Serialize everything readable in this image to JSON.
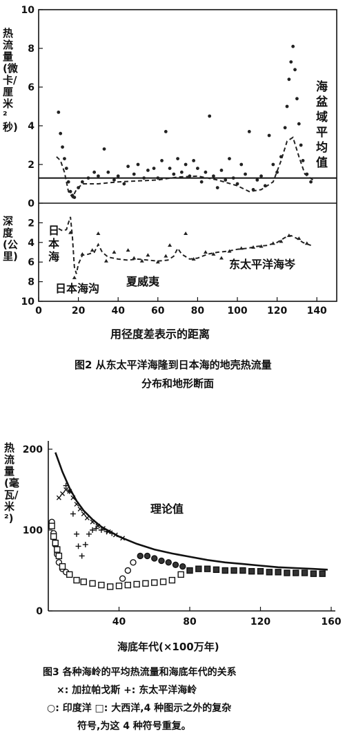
{
  "chart_data": [
    {
      "type": "scatter",
      "figure": "图2",
      "caption_line1": "图2  从东太平洋海隆到日本海的地壳热流量",
      "caption_line2": "分布和地形断面",
      "xlabel": "用径度差表示的距离",
      "x_ticks": [
        "0",
        "20",
        "40",
        "60",
        "80",
        "100",
        "120",
        "140"
      ],
      "xlim": [
        0,
        150
      ],
      "upper_panel": {
        "ylabel": "热流量(微卡/厘米²秒)",
        "ylim": [
          0,
          10
        ],
        "y_ticks": [
          "0",
          "2",
          "4",
          "6",
          "8",
          "10"
        ],
        "average_line": 1.3,
        "average_label": "海盆域平均值",
        "scatter": [
          [
            10,
            4.7
          ],
          [
            11,
            3.6
          ],
          [
            12,
            2.9
          ],
          [
            13,
            2.3
          ],
          [
            14,
            1.8
          ],
          [
            15,
            1.1
          ],
          [
            16,
            0.6
          ],
          [
            17,
            0.4
          ],
          [
            18,
            0.3
          ],
          [
            20,
            0.8
          ],
          [
            22,
            1.1
          ],
          [
            25,
            1.3
          ],
          [
            28,
            1.6
          ],
          [
            30,
            1.4
          ],
          [
            33,
            2.8
          ],
          [
            35,
            1.6
          ],
          [
            38,
            1.2
          ],
          [
            40,
            1.4
          ],
          [
            43,
            1.0
          ],
          [
            45,
            1.9
          ],
          [
            48,
            1.5
          ],
          [
            50,
            2.0
          ],
          [
            53,
            1.3
          ],
          [
            55,
            1.7
          ],
          [
            58,
            1.8
          ],
          [
            60,
            1.3
          ],
          [
            62,
            2.2
          ],
          [
            64,
            3.7
          ],
          [
            66,
            1.8
          ],
          [
            68,
            1.5
          ],
          [
            70,
            2.3
          ],
          [
            72,
            1.6
          ],
          [
            74,
            2.0
          ],
          [
            76,
            1.4
          ],
          [
            78,
            2.2
          ],
          [
            80,
            1.8
          ],
          [
            82,
            1.1
          ],
          [
            84,
            1.6
          ],
          [
            86,
            4.5
          ],
          [
            88,
            1.4
          ],
          [
            90,
            0.8
          ],
          [
            92,
            1.7
          ],
          [
            94,
            1.2
          ],
          [
            96,
            2.3
          ],
          [
            98,
            1.3
          ],
          [
            100,
            1.0
          ],
          [
            102,
            2.0
          ],
          [
            104,
            1.5
          ],
          [
            106,
            3.7
          ],
          [
            108,
            0.7
          ],
          [
            110,
            1.2
          ],
          [
            112,
            1.4
          ],
          [
            114,
            0.9
          ],
          [
            116,
            3.5
          ],
          [
            118,
            2.0
          ],
          [
            120,
            1.6
          ],
          [
            122,
            2.4
          ],
          [
            124,
            3.9
          ],
          [
            125,
            5.0
          ],
          [
            126,
            6.4
          ],
          [
            127,
            7.3
          ],
          [
            128,
            8.1
          ],
          [
            129,
            6.9
          ],
          [
            130,
            5.4
          ],
          [
            131,
            4.1
          ],
          [
            132,
            3.0
          ],
          [
            133,
            2.2
          ],
          [
            135,
            1.5
          ],
          [
            137,
            1.1
          ]
        ],
        "trend": [
          [
            9,
            2.4
          ],
          [
            11,
            2.2
          ],
          [
            13,
            1.6
          ],
          [
            15,
            0.6
          ],
          [
            17,
            0.3
          ],
          [
            19,
            0.7
          ],
          [
            22,
            1.0
          ],
          [
            30,
            1.0
          ],
          [
            40,
            1.1
          ],
          [
            50,
            1.15
          ],
          [
            60,
            1.2
          ],
          [
            70,
            1.35
          ],
          [
            80,
            1.4
          ],
          [
            90,
            1.2
          ],
          [
            100,
            0.9
          ],
          [
            106,
            0.6
          ],
          [
            112,
            0.7
          ],
          [
            118,
            1.1
          ],
          [
            122,
            2.2
          ],
          [
            125,
            3.2
          ],
          [
            128,
            3.4
          ],
          [
            131,
            2.4
          ],
          [
            134,
            1.5
          ],
          [
            138,
            1.2
          ]
        ]
      },
      "lower_panel": {
        "ylabel": "深度(公里)",
        "ylim": [
          0,
          10
        ],
        "y_ticks": [
          "0",
          "2",
          "4",
          "6",
          "8",
          "10"
        ],
        "labels": [
          "日本海",
          "日本海沟",
          "夏威夷",
          "东太平洋海岑"
        ],
        "profile": [
          [
            10,
            2.6
          ],
          [
            12,
            2.8
          ],
          [
            14,
            2.7
          ],
          [
            15,
            2.0
          ],
          [
            16,
            1.4
          ],
          [
            17,
            3.5
          ],
          [
            18,
            6.5
          ],
          [
            19,
            7.2
          ],
          [
            20,
            6.2
          ],
          [
            22,
            5.3
          ],
          [
            25,
            5.2
          ],
          [
            28,
            5.0
          ],
          [
            30,
            4.2
          ],
          [
            32,
            5.0
          ],
          [
            35,
            5.5
          ],
          [
            40,
            5.7
          ],
          [
            45,
            5.8
          ],
          [
            50,
            5.7
          ],
          [
            55,
            5.8
          ],
          [
            60,
            5.9
          ],
          [
            65,
            5.8
          ],
          [
            68,
            5.4
          ],
          [
            70,
            4.6
          ],
          [
            72,
            5.2
          ],
          [
            76,
            5.7
          ],
          [
            80,
            5.6
          ],
          [
            85,
            5.2
          ],
          [
            90,
            5.0
          ],
          [
            95,
            4.9
          ],
          [
            100,
            4.7
          ],
          [
            105,
            4.6
          ],
          [
            110,
            4.4
          ],
          [
            115,
            4.3
          ],
          [
            120,
            4.0
          ],
          [
            124,
            3.5
          ],
          [
            127,
            3.3
          ],
          [
            130,
            3.6
          ],
          [
            133,
            4.0
          ],
          [
            137,
            4.3
          ]
        ],
        "scatter": [
          [
            16,
            3.0
          ],
          [
            18,
            7.6
          ],
          [
            22,
            5.2
          ],
          [
            27,
            4.8
          ],
          [
            30,
            3.1
          ],
          [
            34,
            5.9
          ],
          [
            38,
            5.0
          ],
          [
            45,
            4.8
          ],
          [
            48,
            5.6
          ],
          [
            52,
            5.9
          ],
          [
            55,
            5.3
          ],
          [
            60,
            6.0
          ],
          [
            64,
            5.4
          ],
          [
            66,
            4.3
          ],
          [
            74,
            3.1
          ],
          [
            78,
            5.7
          ],
          [
            84,
            5.0
          ],
          [
            88,
            5.2
          ],
          [
            92,
            5.6
          ],
          [
            96,
            4.9
          ],
          [
            102,
            4.6
          ],
          [
            108,
            4.5
          ],
          [
            112,
            4.4
          ],
          [
            118,
            4.1
          ],
          [
            122,
            3.9
          ],
          [
            126,
            3.3
          ],
          [
            131,
            3.6
          ],
          [
            135,
            4.1
          ]
        ]
      }
    },
    {
      "type": "scatter",
      "figure": "图3",
      "caption_line1": "图3  各种海岭的平均热流量和海底年代的关系",
      "caption_line2": "×: 加拉帕戈斯   +: 东太平洋海岭",
      "caption_line3": "○: 印度洋   □: 大西洋,4 种图示之外的复杂",
      "caption_line4": "符号,为这 4 种符号重复。",
      "ylabel": "热流量(毫瓦/米²)",
      "xlabel": "海底年代(×100万年)",
      "x_ticks": [
        "40",
        "80",
        "120",
        "160"
      ],
      "y_ticks": [
        "0",
        "100",
        "200"
      ],
      "xlim": [
        0,
        160
      ],
      "ylim": [
        0,
        200
      ],
      "theory_label": "理论值",
      "theory": [
        [
          4,
          196
        ],
        [
          8,
          172
        ],
        [
          12,
          152
        ],
        [
          16,
          136
        ],
        [
          20,
          124
        ],
        [
          25,
          113
        ],
        [
          30,
          104
        ],
        [
          40,
          92
        ],
        [
          50,
          83
        ],
        [
          60,
          76
        ],
        [
          70,
          71
        ],
        [
          80,
          67
        ],
        [
          90,
          63
        ],
        [
          100,
          60
        ],
        [
          110,
          58
        ],
        [
          120,
          56
        ],
        [
          130,
          54
        ],
        [
          140,
          53
        ],
        [
          150,
          52
        ],
        [
          158,
          51
        ]
      ],
      "series": [
        {
          "name": "加拉帕戈斯",
          "marker": "x",
          "points": [
            [
              6,
              140
            ],
            [
              8,
              145
            ],
            [
              10,
              150
            ],
            [
              12,
              148
            ],
            [
              14,
              140
            ],
            [
              16,
              132
            ],
            [
              18,
              126
            ],
            [
              20,
              120
            ],
            [
              22,
              115
            ],
            [
              25,
              110
            ],
            [
              28,
              105
            ],
            [
              31,
              102
            ],
            [
              34,
              98
            ],
            [
              38,
              94
            ],
            [
              42,
              90
            ]
          ]
        },
        {
          "name": "东太平洋海岭",
          "marker": "+",
          "points": [
            [
              10,
              155
            ],
            [
              12,
              148
            ],
            [
              14,
              120
            ],
            [
              16,
              95
            ],
            [
              17,
              80
            ],
            [
              19,
              68
            ],
            [
              21,
              82
            ],
            [
              23,
              95
            ],
            [
              25,
              100
            ],
            [
              27,
              102
            ],
            [
              30,
              100
            ],
            [
              33,
              98
            ],
            [
              36,
              96
            ]
          ]
        },
        {
          "name": "印度洋",
          "marker": "o",
          "points": [
            [
              2,
              110
            ],
            [
              3,
              96
            ],
            [
              4,
              82
            ],
            [
              5,
              70
            ],
            [
              6,
              60
            ],
            [
              8,
              52
            ],
            [
              10,
              48
            ],
            [
              42,
              40
            ],
            [
              45,
              50
            ],
            [
              48,
              60
            ],
            [
              52,
              68
            ],
            [
              56,
              68
            ],
            [
              60,
              65
            ],
            [
              64,
              62
            ],
            [
              68,
              60
            ],
            [
              72,
              57
            ],
            [
              76,
              55
            ]
          ]
        },
        {
          "name": "大西洋",
          "marker": "s",
          "points": [
            [
              2,
              105
            ],
            [
              3,
              92
            ],
            [
              4,
              84
            ],
            [
              5,
              76
            ],
            [
              6,
              68
            ],
            [
              8,
              55
            ],
            [
              12,
              45
            ],
            [
              16,
              38
            ],
            [
              20,
              36
            ],
            [
              25,
              34
            ],
            [
              30,
              32
            ],
            [
              35,
              30
            ],
            [
              40,
              31
            ],
            [
              45,
              32
            ],
            [
              50,
              33
            ],
            [
              55,
              34
            ],
            [
              60,
              35
            ],
            [
              65,
              36
            ],
            [
              70,
              38
            ],
            [
              75,
              45
            ],
            [
              80,
              50
            ],
            [
              85,
              52
            ],
            [
              90,
              52
            ],
            [
              95,
              51
            ],
            [
              100,
              50
            ],
            [
              105,
              50
            ],
            [
              110,
              50
            ],
            [
              115,
              49
            ],
            [
              120,
              49
            ],
            [
              125,
              48
            ],
            [
              130,
              48
            ],
            [
              135,
              47
            ],
            [
              140,
              47
            ],
            [
              145,
              47
            ],
            [
              150,
              46
            ],
            [
              155,
              46
            ]
          ]
        }
      ]
    }
  ]
}
